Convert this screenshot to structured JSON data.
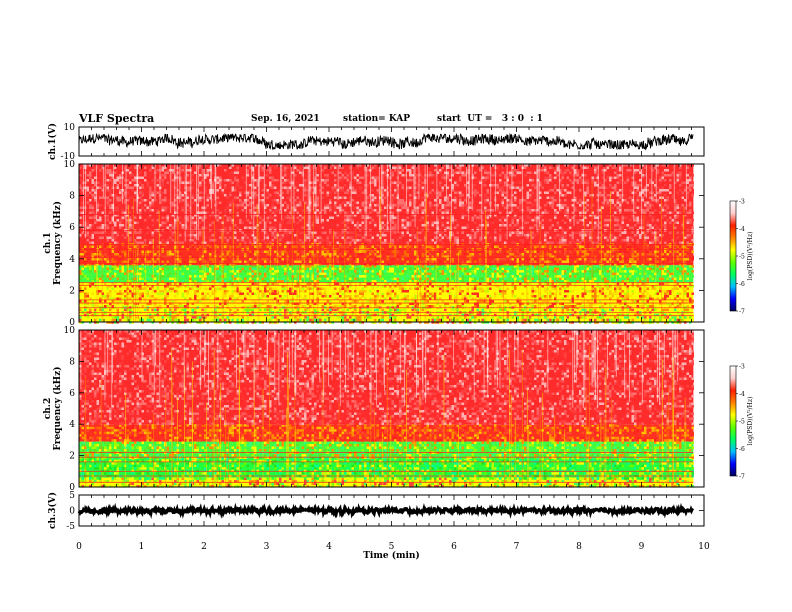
{
  "header": {
    "title": "VLF Spectra",
    "date": "Sep. 16, 2021",
    "station": "station= KAP",
    "start": "start  UT =   3 : 0  : 1"
  },
  "colors": {
    "colorbar_stops": [
      "#000060",
      "#0000ff",
      "#00c0ff",
      "#00ff60",
      "#60ff00",
      "#ffff00",
      "#ff8000",
      "#ff2000",
      "#ffd0d0",
      "#ffffff"
    ],
    "spectrogram_base": "#ff3030",
    "trace": "#000000"
  },
  "chart_data": [
    {
      "id": "ch1-waveform",
      "type": "line",
      "ylabel": "ch.1(V)",
      "ylim": [
        -10,
        10
      ],
      "yticks": [
        "10",
        "-10"
      ],
      "xlim": [
        0,
        10
      ],
      "data_end_min": 9.83,
      "series": [
        {
          "values_range": [
            -5,
            5
          ]
        }
      ]
    },
    {
      "id": "ch1-spectrogram",
      "type": "heatmap",
      "ylabel_lines": [
        "ch.1",
        "Frequency  (kHz)"
      ],
      "ylim": [
        0,
        10
      ],
      "yticks": [
        "0",
        "2",
        "4",
        "6",
        "8",
        "10"
      ],
      "xlim": [
        0,
        10
      ],
      "data_end_min": 9.83,
      "colorbar": {
        "label": "log(PSD)(V²/Hz)",
        "range": [
          -7,
          -3
        ],
        "ticks": [
          "-3",
          "-4",
          "-5",
          "-6",
          "-7"
        ]
      },
      "bands": [
        {
          "from_khz": 0,
          "to_khz": 1.0,
          "level": "yellow-green"
        },
        {
          "from_khz": 1.0,
          "to_khz": 2.5,
          "level": "yellow-orange"
        },
        {
          "from_khz": 2.5,
          "to_khz": 3.6,
          "level": "green-yellow"
        },
        {
          "from_khz": 3.6,
          "to_khz": 5.0,
          "level": "orange-red"
        },
        {
          "from_khz": 5.0,
          "to_khz": 10,
          "level": "red-white"
        }
      ],
      "interference_lines_khz": [
        0.4,
        0.6,
        0.9,
        1.2,
        1.4,
        2.3,
        2.5,
        3.7,
        4.1,
        4.6,
        4.9,
        5.8,
        6.8
      ]
    },
    {
      "id": "ch2-spectrogram",
      "type": "heatmap",
      "ylabel_lines": [
        "ch.2",
        "Frequency  (kHz)"
      ],
      "ylim": [
        0,
        10
      ],
      "yticks": [
        "0",
        "2",
        "4",
        "6",
        "8",
        "10"
      ],
      "xlim": [
        0,
        10
      ],
      "data_end_min": 9.83,
      "colorbar": {
        "label": "log(PSD)(V²/Hz)",
        "range": [
          -7,
          -3
        ],
        "ticks": [
          "-3",
          "-4",
          "-5",
          "-6",
          "-7"
        ]
      },
      "bands": [
        {
          "from_khz": 0,
          "to_khz": 0.6,
          "level": "yellow-green"
        },
        {
          "from_khz": 0.6,
          "to_khz": 1.9,
          "level": "green"
        },
        {
          "from_khz": 1.9,
          "to_khz": 2.9,
          "level": "green-yellow"
        },
        {
          "from_khz": 2.9,
          "to_khz": 4.0,
          "level": "orange-red"
        },
        {
          "from_khz": 4.0,
          "to_khz": 10,
          "level": "red-white"
        }
      ],
      "interference_lines_khz": [
        0.3,
        0.7,
        1.0,
        1.6,
        1.9,
        2.2
      ]
    },
    {
      "id": "ch3-waveform",
      "type": "line",
      "ylabel": "ch.3(V)",
      "ylim": [
        -5,
        5
      ],
      "yticks": [
        "5",
        "0",
        "-5"
      ],
      "xlim": [
        0,
        10
      ],
      "data_end_min": 9.83,
      "series": [
        {
          "values_range": [
            -0.8,
            0.6
          ]
        }
      ]
    }
  ],
  "xaxis": {
    "label": "Time  (min)",
    "ticks": [
      "0",
      "1",
      "2",
      "3",
      "4",
      "5",
      "6",
      "7",
      "8",
      "9",
      "10"
    ]
  }
}
